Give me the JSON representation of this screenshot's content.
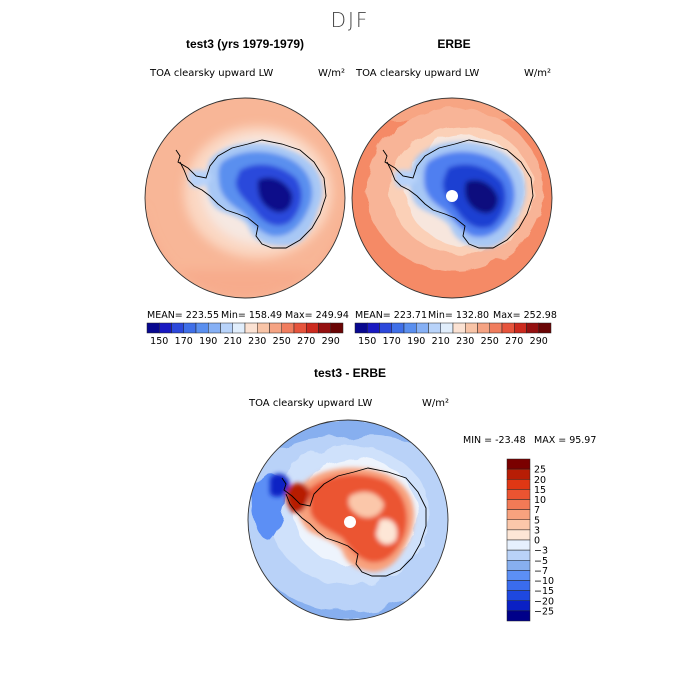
{
  "page_title": "DJF",
  "colors": {
    "seq": [
      "#08088f",
      "#1a1ac2",
      "#2c48db",
      "#3f6fe8",
      "#5a8fef",
      "#86b0f5",
      "#b8d3fa",
      "#e1eefc",
      "#fbe2d3",
      "#f8c4a7",
      "#f5a383",
      "#f07d5e",
      "#e6543c",
      "#cc2a1e",
      "#951010",
      "#6a0505"
    ],
    "div": [
      "#000089",
      "#0a20c4",
      "#1e48e0",
      "#3a6cee",
      "#5c8ff5",
      "#87afef",
      "#b9d2f8",
      "#e6f0fd",
      "#fde6d6",
      "#fbc7aa",
      "#f8a27e",
      "#f27a56",
      "#eb5431",
      "#df3714",
      "#b71d05",
      "#7a0000"
    ]
  },
  "chart_data": [
    {
      "type": "heatmap",
      "title": "test3 (yrs 1979-1979)",
      "subtitle": "TOA clearsky upward LW",
      "units": "W/m²",
      "stats": {
        "mean": "MEAN= 223.55",
        "min": "Min= 158.49",
        "max": "Max= 249.94"
      },
      "colorbar_ticks": [
        "150",
        "170",
        "190",
        "210",
        "230",
        "250",
        "270",
        "290"
      ],
      "levels": [
        140,
        150,
        160,
        170,
        180,
        190,
        200,
        210,
        220,
        230,
        240,
        250,
        260,
        270,
        280,
        290,
        300
      ]
    },
    {
      "type": "heatmap",
      "title": "ERBE",
      "subtitle": "TOA clearsky upward LW",
      "units": "W/m²",
      "stats": {
        "mean": "MEAN= 223.71",
        "min": "Min= 132.80",
        "max": "Max= 252.98"
      },
      "colorbar_ticks": [
        "150",
        "170",
        "190",
        "210",
        "230",
        "250",
        "270",
        "290"
      ],
      "levels": [
        140,
        150,
        160,
        170,
        180,
        190,
        200,
        210,
        220,
        230,
        240,
        250,
        260,
        270,
        280,
        290,
        300
      ]
    },
    {
      "type": "heatmap",
      "title": "test3 - ERBE",
      "subtitle": "TOA clearsky upward LW",
      "units": "W/m²",
      "stats": {
        "min": "MIN = -23.48",
        "max": "MAX =  95.97"
      },
      "colorbar_ticks": [
        "25",
        "20",
        "15",
        "10",
        "7",
        "5",
        "3",
        "0",
        "−3",
        "−5",
        "−7",
        "−10",
        "−15",
        "−20",
        "−25"
      ],
      "levels": [
        -30,
        -25,
        -20,
        -15,
        -10,
        -7,
        -5,
        -3,
        0,
        3,
        5,
        7,
        10,
        15,
        20,
        25,
        30
      ]
    }
  ]
}
